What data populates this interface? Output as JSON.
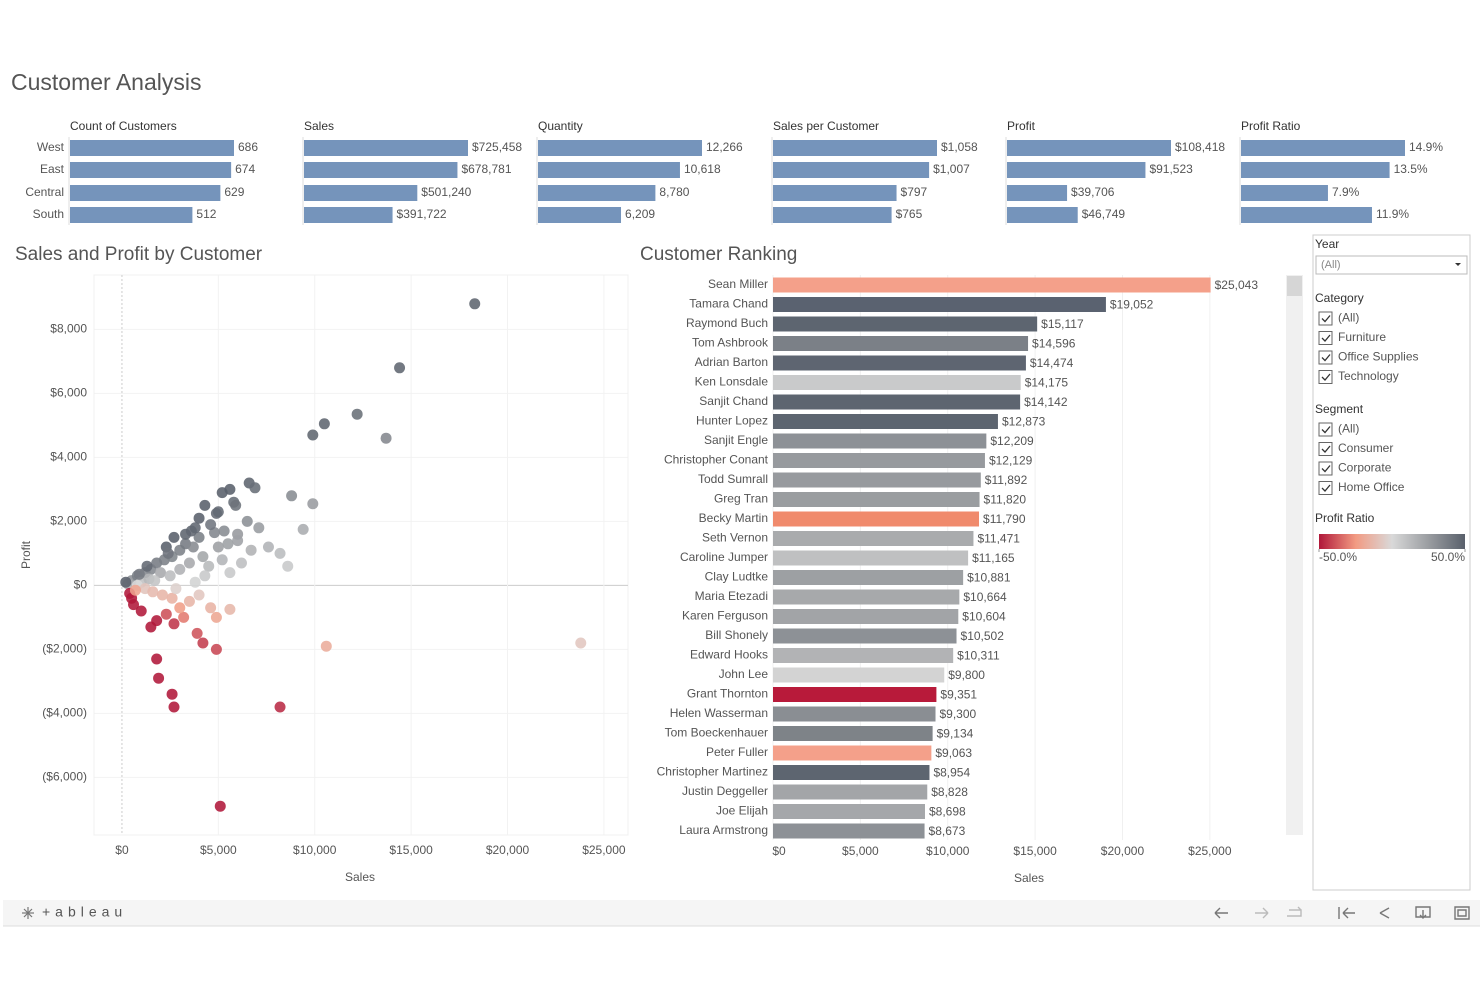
{
  "title": "Customer Analysis",
  "chart_data": [
    {
      "type": "bar",
      "categories": [
        "West",
        "East",
        "Central",
        "South"
      ],
      "color": "#7594bb",
      "series": [
        {
          "name": "Count of Customers",
          "values": [
            686,
            674,
            629,
            512
          ]
        },
        {
          "name": "Sales",
          "values": [
            725458,
            678781,
            501240,
            391722
          ],
          "value_labels": [
            "$725,458",
            "$678,781",
            "$501,240",
            "$391,722"
          ]
        },
        {
          "name": "Quantity",
          "values": [
            12266,
            10618,
            8780,
            6209
          ],
          "value_labels": [
            "12,266",
            "10,618",
            "8,780",
            "6,209"
          ]
        },
        {
          "name": "Sales per Customer",
          "values": [
            1058,
            1007,
            797,
            765
          ],
          "value_labels": [
            "$1,058",
            "$1,007",
            "$797",
            "$765"
          ]
        },
        {
          "name": "Profit",
          "values": [
            108418,
            91523,
            39706,
            46749
          ],
          "value_labels": [
            "$108,418",
            "$91,523",
            "$39,706",
            "$46,749"
          ]
        },
        {
          "name": "Profit Ratio",
          "values": [
            14.9,
            13.5,
            7.9,
            11.9
          ],
          "value_labels": [
            "14.9%",
            "13.5%",
            "7.9%",
            "11.9%"
          ]
        }
      ]
    },
    {
      "type": "scatter",
      "title": "Sales and Profit by Customer",
      "x_label": "Sales",
      "y_label": "Profit",
      "grid": true,
      "xlim": [
        -1450,
        26250
      ],
      "ylim": [
        -7800,
        9700
      ],
      "xticks": [
        {
          "value": 0,
          "label": "$0"
        },
        {
          "value": 5000,
          "label": "$5,000"
        },
        {
          "value": 10000,
          "label": "$10,000"
        },
        {
          "value": 15000,
          "label": "$15,000"
        },
        {
          "value": 20000,
          "label": "$20,000"
        },
        {
          "value": 25000,
          "label": "$25,000"
        }
      ],
      "yticks": [
        {
          "value": -6000,
          "label": "($6,000)"
        },
        {
          "value": -4000,
          "label": "($4,000)"
        },
        {
          "value": -2000,
          "label": "($2,000)"
        },
        {
          "value": 0,
          "label": "$0"
        },
        {
          "value": 2000,
          "label": "$2,000"
        },
        {
          "value": 4000,
          "label": "$4,000"
        },
        {
          "value": 6000,
          "label": "$6,000"
        },
        {
          "value": 8000,
          "label": "$8,000"
        }
      ],
      "x": [
        18300,
        14400,
        12200,
        10500,
        9900,
        13700,
        6600,
        6900,
        5800,
        5900,
        8800,
        9900,
        4900,
        6500,
        7100,
        9400,
        4800,
        6000,
        7600,
        6700,
        8200,
        8600,
        5600,
        23800,
        10600,
        8200,
        5100,
        1800,
        1900,
        2600,
        2700,
        4900,
        4200,
        3900,
        5600,
        4900,
        4600,
        3200,
        2700,
        3000,
        2300,
        1500,
        1800,
        1000,
        600,
        500,
        3500,
        2600,
        4000,
        500,
        800,
        1200,
        1500,
        1800,
        2200,
        2600,
        3000,
        3300,
        4000,
        3700,
        2000,
        2500,
        3000,
        3500,
        4200,
        4500,
        5000,
        5500,
        1000,
        1400,
        1700,
        300,
        200,
        800,
        1200,
        1600,
        2100,
        2800,
        3800,
        4300,
        5200,
        6200,
        6000,
        5300,
        4600,
        4000,
        3800,
        3300,
        2700,
        2300,
        5000,
        4300,
        5200,
        5600,
        1300,
        900,
        2400,
        3600,
        400,
        700
      ],
      "values": [
        8800,
        6800,
        5350,
        5050,
        4700,
        4600,
        3200,
        3050,
        2600,
        2500,
        2800,
        2550,
        2250,
        2000,
        1800,
        1750,
        1650,
        1600,
        1200,
        1100,
        1000,
        600,
        400,
        -1800,
        -1900,
        -3800,
        -6900,
        -2300,
        -2900,
        -3400,
        -3800,
        -2000,
        -1800,
        -1500,
        -750,
        -1000,
        -700,
        -1000,
        -1200,
        -700,
        -900,
        -1300,
        -1100,
        -800,
        -600,
        -400,
        -500,
        -400,
        -300,
        150,
        300,
        400,
        500,
        700,
        800,
        900,
        1100,
        1300,
        1500,
        1200,
        400,
        300,
        500,
        700,
        900,
        600,
        1200,
        1300,
        100,
        200,
        150,
        50,
        100,
        0,
        -100,
        -200,
        -300,
        -100,
        100,
        300,
        800,
        700,
        1400,
        1700,
        1900,
        2100,
        1800,
        1600,
        1500,
        1200,
        2300,
        2500,
        2900,
        3000,
        600,
        350,
        1000,
        1700,
        -250,
        -150
      ]
    },
    {
      "type": "hbar",
      "title": "Customer Ranking",
      "x_label": "Sales",
      "grid": true,
      "xlim": [
        0,
        29300
      ],
      "xticks": [
        {
          "value": 0,
          "label": "$0"
        },
        {
          "value": 5000,
          "label": "$5,000"
        },
        {
          "value": 10000,
          "label": "$10,000"
        },
        {
          "value": 15000,
          "label": "$15,000"
        },
        {
          "value": 20000,
          "label": "$20,000"
        },
        {
          "value": 25000,
          "label": "$25,000"
        }
      ],
      "categories": [
        "Sean Miller",
        "Tamara Chand",
        "Raymond Buch",
        "Tom Ashbrook",
        "Adrian Barton",
        "Ken Lonsdale",
        "Sanjit Chand",
        "Hunter Lopez",
        "Sanjit Engle",
        "Christopher Conant",
        "Todd Sumrall",
        "Greg Tran",
        "Becky Martin",
        "Seth Vernon",
        "Caroline Jumper",
        "Clay Ludtke",
        "Maria Etezadi",
        "Karen Ferguson",
        "Bill Shonely",
        "Edward Hooks",
        "John Lee",
        "Grant Thornton",
        "Helen Wasserman",
        "Tom Boeckenhauer",
        "Peter Fuller",
        "Christopher Martinez",
        "Justin Deggeller",
        "Joe Elijah",
        "Laura Armstrong"
      ],
      "values": [
        25043,
        19052,
        15117,
        14596,
        14474,
        14175,
        14142,
        12873,
        12209,
        12129,
        11892,
        11820,
        11790,
        11471,
        11165,
        10881,
        10664,
        10604,
        10502,
        10311,
        9800,
        9351,
        9300,
        9134,
        9063,
        8954,
        8828,
        8698,
        8673
      ],
      "value_labels": [
        "$25,043",
        "$19,052",
        "$15,117",
        "$14,596",
        "$14,474",
        "$14,175",
        "$14,142",
        "$12,873",
        "$12,209",
        "$12,129",
        "$11,892",
        "$11,820",
        "$11,790",
        "$11,471",
        "$11,165",
        "$10,881",
        "$10,664",
        "$10,604",
        "$10,502",
        "$10,311",
        "$9,800",
        "$9,351",
        "$9,300",
        "$9,134",
        "$9,063",
        "$8,954",
        "$8,828",
        "$8,698",
        "$8,673"
      ],
      "colors": [
        "#f4a08a",
        "#5a6270",
        "#5d6570",
        "#7b8087",
        "#5e6571",
        "#c9cacb",
        "#5d6570",
        "#5d6570",
        "#8d9196",
        "#979a9e",
        "#979a9e",
        "#9a9da0",
        "#f08a6c",
        "#a9abad",
        "#bfc0c1",
        "#9da0a3",
        "#a7a9ab",
        "#a2a4a7",
        "#8d9196",
        "#b2b3b5",
        "#d3d3d3",
        "#b81a3a",
        "#8a8e93",
        "#7e8388",
        "#f4a08a",
        "#5d6570",
        "#a3a5a8",
        "#a5a7aa",
        "#8d9196"
      ]
    }
  ],
  "color_legend": {
    "title": "Profit Ratio",
    "ticks": [
      {
        "value": -50,
        "label": "-50.0%"
      },
      {
        "value": 50,
        "label": "50.0%"
      }
    ],
    "colors": [
      "#b0183a",
      "#f29a82",
      "#d9d9d9",
      "#9a9da1",
      "#59606b"
    ]
  },
  "filters": {
    "year": {
      "title": "Year",
      "value": "(All)"
    },
    "category": {
      "title": "Category",
      "options": [
        "(All)",
        "Furniture",
        "Office Supplies",
        "Technology"
      ]
    },
    "segment": {
      "title": "Segment",
      "options": [
        "(All)",
        "Consumer",
        "Corporate",
        "Home Office"
      ]
    }
  },
  "footer": {
    "brand": "+ableau"
  }
}
